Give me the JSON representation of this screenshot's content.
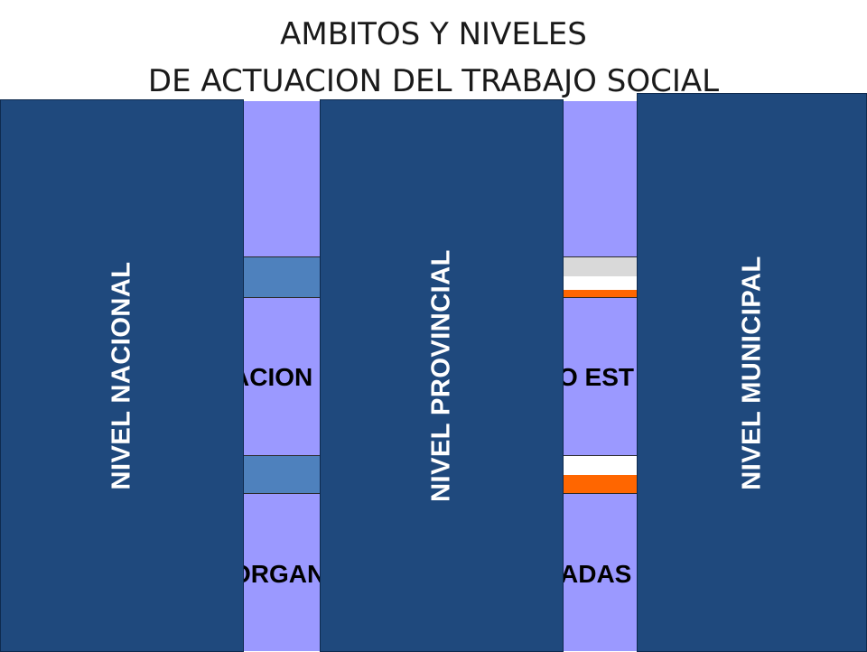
{
  "title": {
    "line1": "AMBITOS  Y NIVELES",
    "line2": "DE ACTUACION DEL TRABAJO SOCIAL"
  },
  "panels": [
    {
      "label": "NIVEL  NACIONAL"
    },
    {
      "label": "NIVEL  PROVINCIAL"
    },
    {
      "label": "NIVEL  MUNICIPAL"
    }
  ],
  "strip_fragments": {
    "left_mid": "ACION",
    "left_bottom": "ORGAN",
    "right_mid": "O EST",
    "right_bottom": "ADAS"
  },
  "colors": {
    "panel": "#1f497d",
    "lavender": "#9b99ff",
    "steel": "#4e81bd",
    "orange": "#ff6600",
    "grey": "#d9d9d9"
  }
}
